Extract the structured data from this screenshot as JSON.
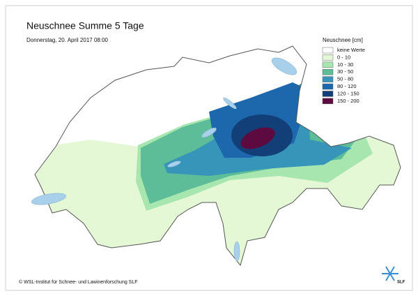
{
  "header": {
    "title": "Neuschnee Summe 5 Tage",
    "subtitle": "Donnerstag, 20. April 2017 08:00"
  },
  "legend": {
    "title": "Neuschnee [cm]",
    "items": [
      {
        "label": "keine Werte",
        "color": "#ffffff"
      },
      {
        "label": "0 - 10",
        "color": "#e4f8d6"
      },
      {
        "label": "10 - 30",
        "color": "#a8e6b0"
      },
      {
        "label": "30 - 50",
        "color": "#5cbd98"
      },
      {
        "label": "50 - 80",
        "color": "#3895ba"
      },
      {
        "label": "80 - 120",
        "color": "#1d67ad"
      },
      {
        "label": "120 - 150",
        "color": "#123f78"
      },
      {
        "label": "150 - 200",
        "color": "#5c0a40"
      }
    ]
  },
  "footer": {
    "copyright": "© WSL-Institut für Schnee- und Lawinenforschung SLF",
    "logo": "SLF"
  }
}
